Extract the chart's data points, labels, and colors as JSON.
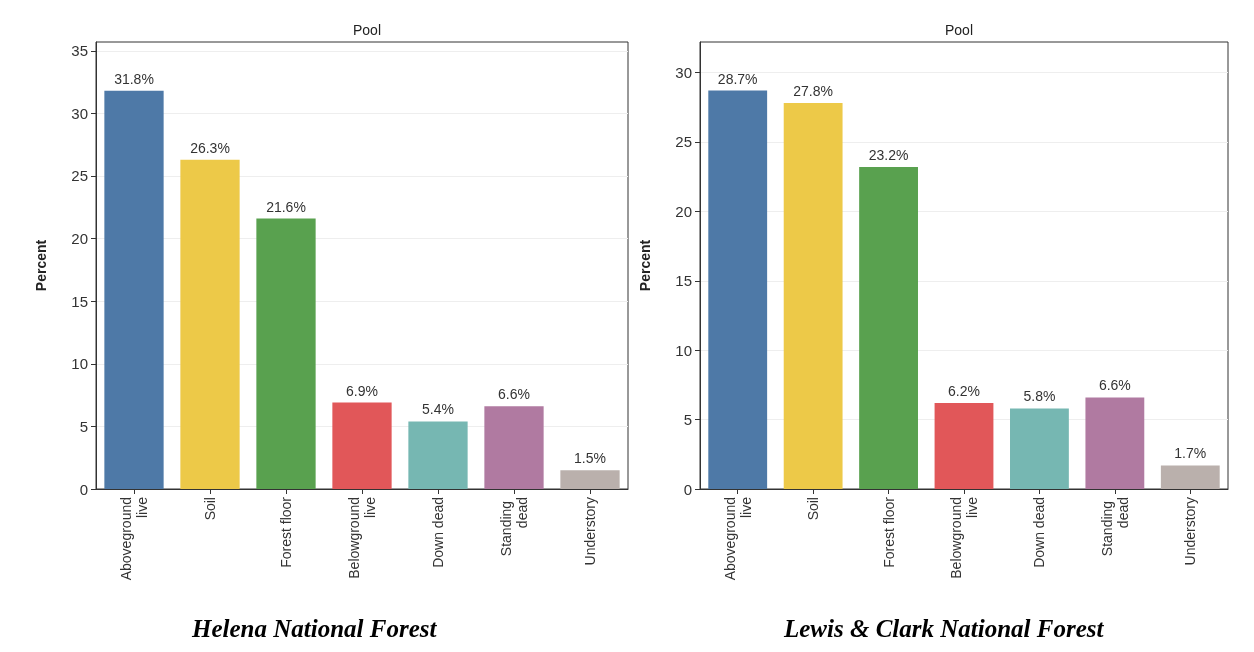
{
  "chart_data": [
    {
      "type": "bar",
      "title": "Pool",
      "ylabel": "Percent",
      "categories": [
        "Aboveground live",
        "Soil",
        "Forest floor",
        "Belowground live",
        "Down dead",
        "Standing dead",
        "Understory"
      ],
      "values": [
        31.8,
        26.3,
        21.6,
        6.9,
        5.4,
        6.6,
        1.5
      ],
      "colors": [
        "#4e79a7",
        "#edc948",
        "#59a14f",
        "#e15759",
        "#76b7b2",
        "#b07aa1",
        "#bab0ac"
      ],
      "value_labels": [
        "31.8%",
        "26.3%",
        "21.6%",
        "6.9%",
        "5.4%",
        "6.6%",
        "1.5%"
      ],
      "ylim": [
        0,
        35.7
      ],
      "yticks": [
        0,
        5,
        10,
        15,
        20,
        25,
        30,
        35
      ],
      "grid": "y",
      "annotations": [
        "Helena National Forest"
      ]
    },
    {
      "type": "bar",
      "title": "Pool",
      "ylabel": "Percent",
      "categories": [
        "Aboveground live",
        "Soil",
        "Forest floor",
        "Belowground live",
        "Down dead",
        "Standing dead",
        "Understory"
      ],
      "values": [
        28.7,
        27.8,
        23.2,
        6.2,
        5.8,
        6.6,
        1.7
      ],
      "colors": [
        "#4e79a7",
        "#edc948",
        "#59a14f",
        "#e15759",
        "#76b7b2",
        "#b07aa1",
        "#bab0ac"
      ],
      "value_labels": [
        "28.7%",
        "27.8%",
        "23.2%",
        "6.2%",
        "5.8%",
        "6.6%",
        "1.7%"
      ],
      "ylim": [
        0,
        32.2
      ],
      "yticks": [
        0,
        5,
        10,
        15,
        20,
        25,
        30
      ],
      "grid": "y",
      "annotations": [
        "Lewis & Clark National Forest"
      ]
    }
  ]
}
